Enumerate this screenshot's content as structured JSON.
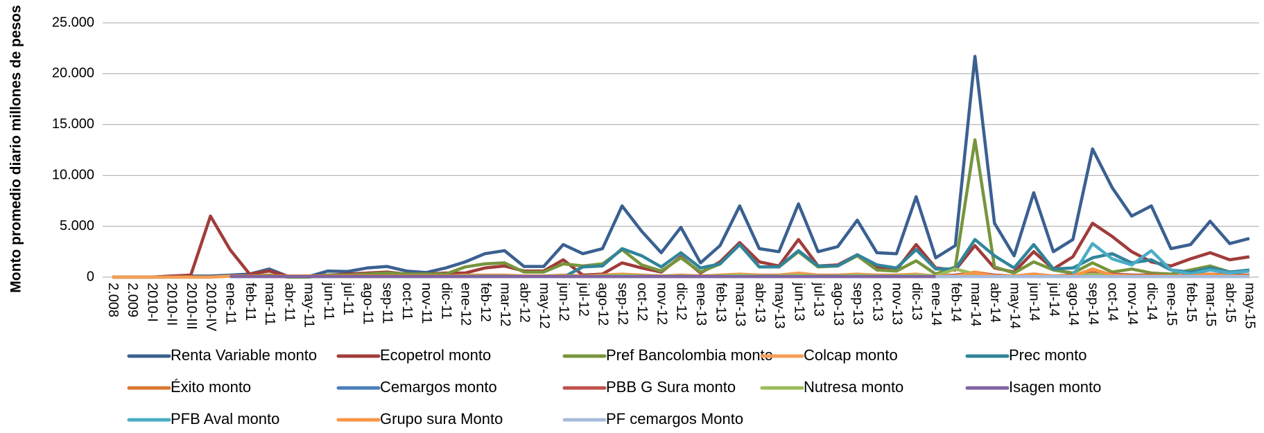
{
  "chart_data": {
    "type": "line",
    "y_label": "Monto promedio diario millones de pesos",
    "categories": [
      "2.008",
      "2.009",
      "2010-I",
      "2010-II",
      "2010-III",
      "2010-IV",
      "ene-11",
      "feb-11",
      "mar-11",
      "abr-11",
      "may-11",
      "jun-11",
      "jul-11",
      "ago-11",
      "sep-11",
      "oct-11",
      "nov-11",
      "dic-11",
      "ene-12",
      "feb-12",
      "mar-12",
      "abr-12",
      "may-12",
      "jun-12",
      "jul-12",
      "ago-12",
      "sep-12",
      "oct-12",
      "nov-12",
      "dic-12",
      "ene-13",
      "feb-13",
      "mar-13",
      "abr-13",
      "may-13",
      "jun-13",
      "jul-13",
      "ago-13",
      "sep-13",
      "oct-13",
      "nov-13",
      "dic-13",
      "ene-14",
      "feb-14",
      "mar-14",
      "abr-14",
      "may-14",
      "jun-14",
      "jul-14",
      "ago-14",
      "sep-14",
      "oct-14",
      "nov-14",
      "dic-14",
      "ene-15",
      "feb-15",
      "mar-15",
      "abr-15",
      "may-15"
    ],
    "ylim": [
      0,
      25000
    ],
    "yticks": [
      0,
      {
        "value": 5000,
        "label": "5.000"
      },
      {
        "value": 10000,
        "label": "10.000"
      },
      {
        "value": 15000,
        "label": "15.000"
      },
      {
        "value": 20000,
        "label": "20.000"
      },
      {
        "value": 25000,
        "label": "25.000"
      }
    ],
    "grid": true,
    "legend": "bottom",
    "series": [
      {
        "name": "Renta Variable monto",
        "color": "#3b6091",
        "values": [
          0,
          0,
          0,
          100,
          100,
          100,
          200,
          300,
          800,
          50,
          50,
          600,
          550,
          900,
          1050,
          600,
          450,
          900,
          1500,
          2300,
          2600,
          1050,
          1050,
          3200,
          2300,
          2800,
          7000,
          4500,
          2400,
          4900,
          1400,
          3100,
          7000,
          2800,
          2500,
          7200,
          2500,
          3000,
          5600,
          2400,
          2300,
          7900,
          1900,
          3100,
          21700,
          5300,
          2100,
          8300,
          2500,
          3700,
          12600,
          8800,
          6000,
          7000,
          2800,
          3200,
          5500,
          3300,
          3800
        ]
      },
      {
        "name": "Ecopetrol monto",
        "color": "#a03c3a",
        "values": [
          0,
          0,
          0,
          100,
          200,
          6000,
          2700,
          300,
          600,
          50,
          50,
          200,
          300,
          400,
          500,
          300,
          300,
          400,
          400,
          900,
          1100,
          600,
          600,
          1700,
          200,
          300,
          1400,
          900,
          500,
          2000,
          400,
          1500,
          3400,
          1500,
          1100,
          3700,
          1100,
          1200,
          2200,
          900,
          700,
          3200,
          900,
          700,
          3100,
          900,
          500,
          2500,
          800,
          2000,
          5300,
          4000,
          2500,
          1500,
          1100,
          1800,
          2400,
          1700,
          2000
        ]
      },
      {
        "name": "Pref Bancolombia monto",
        "color": "#77953d",
        "values": [
          0,
          0,
          0,
          0,
          0,
          0,
          100,
          100,
          200,
          0,
          0,
          200,
          200,
          300,
          400,
          300,
          300,
          300,
          1000,
          1300,
          1400,
          500,
          500,
          1300,
          1100,
          1300,
          2700,
          1200,
          600,
          1900,
          500,
          1300,
          3200,
          1000,
          1000,
          2500,
          1000,
          1100,
          2100,
          700,
          600,
          1600,
          300,
          1000,
          13500,
          1000,
          400,
          1500,
          700,
          400,
          1400,
          500,
          800,
          400,
          300,
          700,
          1100,
          500,
          600
        ]
      },
      {
        "name": "Colcap monto",
        "color": "#f59d56",
        "values": [
          0,
          0,
          0,
          0,
          0,
          0,
          100,
          100,
          100,
          100,
          100,
          100,
          100,
          100,
          100,
          100,
          100,
          100,
          200,
          200,
          200,
          100,
          100,
          200,
          100,
          200,
          300,
          200,
          100,
          200,
          100,
          200,
          300,
          200,
          200,
          400,
          200,
          200,
          300,
          200,
          200,
          300,
          100,
          200,
          500,
          200,
          100,
          300,
          100,
          200,
          600,
          300,
          200,
          200,
          100,
          200,
          300,
          200,
          200
        ]
      },
      {
        "name": "Prec monto",
        "color": "#31849b",
        "values": [
          null,
          null,
          null,
          null,
          null,
          null,
          null,
          null,
          null,
          null,
          null,
          null,
          null,
          null,
          null,
          null,
          null,
          null,
          null,
          null,
          null,
          null,
          null,
          0,
          1000,
          1100,
          2800,
          2100,
          1000,
          2400,
          900,
          1300,
          3200,
          1000,
          1000,
          2600,
          1100,
          1100,
          2200,
          1200,
          900,
          2700,
          800,
          800,
          3700,
          2100,
          900,
          3200,
          800,
          900,
          1900,
          2300,
          1400,
          1700,
          700,
          500,
          900,
          500,
          700
        ]
      },
      {
        "name": "Éxito monto",
        "color": "#d9772f",
        "values": [
          null,
          null,
          null,
          null,
          null,
          null,
          100,
          100,
          100,
          100,
          100,
          100,
          100,
          100,
          100,
          100,
          100,
          100,
          150,
          150,
          150,
          100,
          100,
          150,
          100,
          150,
          200,
          150,
          100,
          150,
          100,
          150,
          200,
          150,
          150,
          200,
          150,
          150,
          200,
          150,
          150,
          200,
          100,
          150,
          300,
          150,
          100,
          200,
          100,
          150,
          250,
          200,
          150,
          150,
          100,
          150,
          200,
          150,
          150
        ]
      },
      {
        "name": "Cemargos monto",
        "color": "#4a7ebb",
        "values": [
          null,
          null,
          null,
          null,
          null,
          null,
          50,
          50,
          50,
          50,
          50,
          50,
          50,
          50,
          50,
          50,
          50,
          50,
          100,
          100,
          100,
          50,
          50,
          100,
          50,
          100,
          150,
          100,
          50,
          100,
          50,
          100,
          150,
          100,
          100,
          150,
          100,
          100,
          150,
          100,
          100,
          150,
          50,
          100,
          200,
          100,
          50,
          150,
          50,
          100,
          200,
          150,
          100,
          100,
          50,
          100,
          150,
          100,
          100
        ]
      },
      {
        "name": "PBB G Sura monto",
        "color": "#c0504d",
        "values": [
          null,
          null,
          null,
          null,
          null,
          null,
          null,
          null,
          null,
          null,
          null,
          null,
          null,
          null,
          null,
          null,
          null,
          null,
          null,
          null,
          null,
          null,
          null,
          null,
          null,
          null,
          null,
          null,
          null,
          null,
          null,
          null,
          null,
          null,
          null,
          null,
          null,
          null,
          null,
          null,
          null,
          null,
          100,
          200,
          400,
          200,
          100,
          300,
          100,
          200,
          400,
          300,
          200,
          200,
          100,
          200,
          300,
          200,
          200
        ]
      },
      {
        "name": "Nutresa monto",
        "color": "#9bbb59",
        "values": [
          null,
          null,
          null,
          null,
          null,
          null,
          50,
          50,
          50,
          50,
          50,
          50,
          50,
          50,
          50,
          50,
          50,
          50,
          100,
          100,
          100,
          50,
          50,
          100,
          50,
          100,
          200,
          100,
          50,
          100,
          50,
          100,
          200,
          100,
          100,
          200,
          100,
          100,
          200,
          100,
          100,
          200,
          100,
          800,
          300,
          100,
          100,
          200,
          100,
          100,
          300,
          200,
          100,
          100,
          100,
          100,
          200,
          100,
          100
        ]
      },
      {
        "name": "Isagen monto",
        "color": "#8064a2",
        "values": [
          null,
          null,
          null,
          null,
          null,
          null,
          50,
          50,
          50,
          50,
          50,
          50,
          50,
          50,
          50,
          50,
          50,
          50,
          50,
          50,
          50,
          50,
          50,
          50,
          50,
          50,
          50,
          50,
          50,
          50,
          50,
          50,
          50,
          50,
          50,
          50,
          50,
          50,
          50,
          50,
          50,
          50,
          50,
          50,
          50,
          50,
          50,
          50,
          50,
          50,
          50,
          50,
          50,
          50,
          50,
          50,
          50,
          50,
          50
        ]
      },
      {
        "name": "PFB Aval monto",
        "color": "#4bacc6",
        "values": [
          null,
          null,
          null,
          null,
          null,
          null,
          null,
          null,
          null,
          null,
          null,
          null,
          null,
          null,
          null,
          null,
          null,
          null,
          null,
          null,
          null,
          null,
          null,
          null,
          null,
          null,
          null,
          null,
          null,
          null,
          null,
          null,
          null,
          null,
          null,
          null,
          null,
          null,
          null,
          null,
          null,
          null,
          null,
          null,
          null,
          null,
          null,
          null,
          null,
          200,
          3300,
          1800,
          1200,
          2600,
          700,
          300,
          700,
          400,
          600
        ]
      },
      {
        "name": "Grupo sura Monto",
        "color": "#f79646",
        "values": [
          null,
          null,
          null,
          null,
          null,
          null,
          null,
          null,
          null,
          null,
          null,
          null,
          null,
          null,
          null,
          null,
          null,
          null,
          null,
          null,
          null,
          null,
          null,
          null,
          null,
          null,
          null,
          null,
          null,
          null,
          null,
          null,
          null,
          null,
          null,
          null,
          null,
          null,
          null,
          null,
          null,
          null,
          100,
          100,
          400,
          100,
          100,
          300,
          100,
          100,
          800,
          200,
          100,
          100,
          100,
          100,
          300,
          100,
          100
        ]
      },
      {
        "name": "PF cemargos Monto",
        "color": "#a7bcdc",
        "values": [
          null,
          null,
          null,
          null,
          null,
          null,
          null,
          null,
          null,
          null,
          null,
          null,
          null,
          null,
          null,
          null,
          null,
          null,
          null,
          null,
          null,
          null,
          null,
          null,
          null,
          null,
          null,
          null,
          null,
          null,
          null,
          null,
          null,
          null,
          null,
          null,
          null,
          null,
          null,
          null,
          null,
          null,
          50,
          50,
          50,
          50,
          50,
          50,
          50,
          50,
          50,
          50,
          50,
          50,
          50,
          50,
          50,
          50,
          50
        ]
      }
    ]
  }
}
